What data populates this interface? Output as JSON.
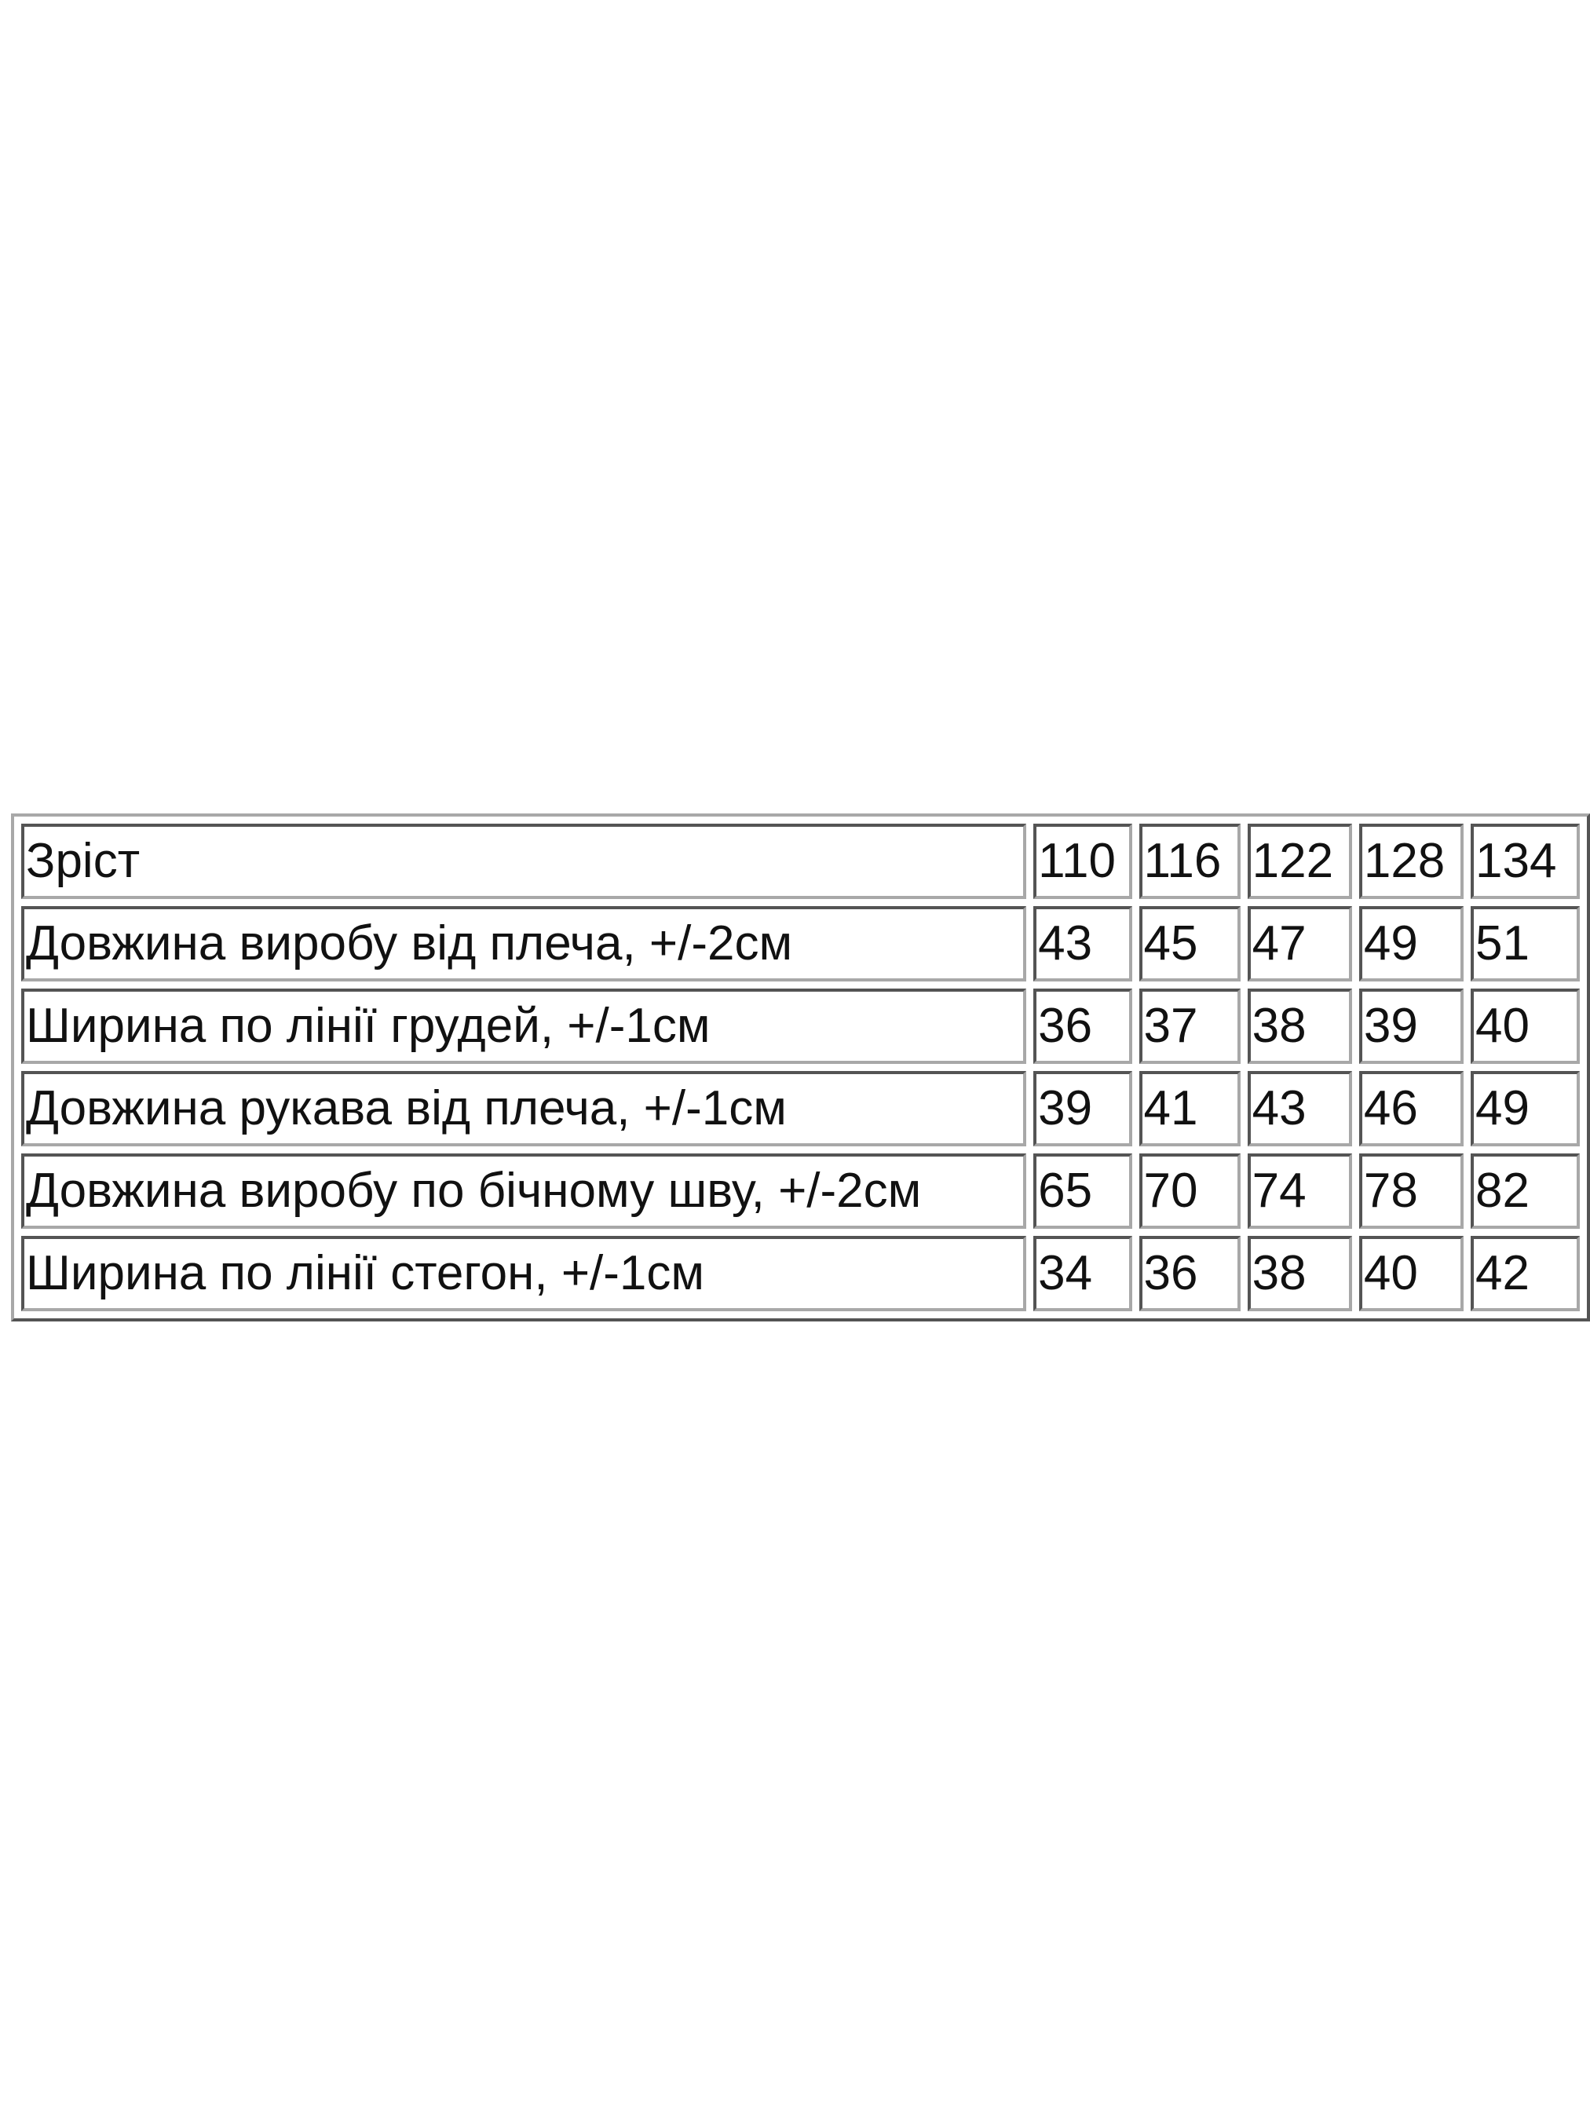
{
  "table": {
    "header": {
      "label": "Зріст",
      "values": [
        "110",
        "116",
        "122",
        "128",
        "134"
      ]
    },
    "rows": [
      {
        "label": "Довжина виробу від плеча, +/-2см",
        "values": [
          "43",
          "45",
          "47",
          "49",
          "51"
        ]
      },
      {
        "label": "Ширина по лінії грудей, +/-1см",
        "values": [
          "36",
          "37",
          "38",
          "39",
          "40"
        ]
      },
      {
        "label": "Довжина рукава від плеча, +/-1см",
        "values": [
          "39",
          "41",
          "43",
          "46",
          "49"
        ]
      },
      {
        "label": "Довжина виробу по бічному шву, +/-2см",
        "values": [
          "65",
          "70",
          "74",
          "78",
          "82"
        ]
      },
      {
        "label": "Ширина по лінії стегон, +/-1см",
        "values": [
          "34",
          "36",
          "38",
          "40",
          "42"
        ]
      }
    ]
  }
}
